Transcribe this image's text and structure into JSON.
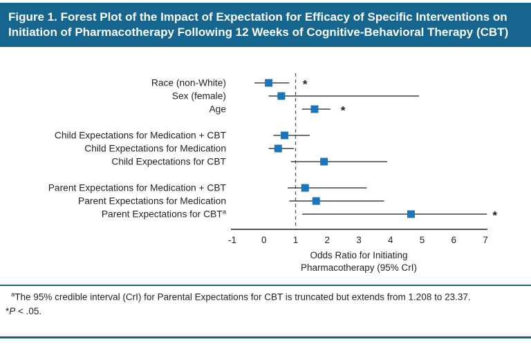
{
  "figure": {
    "title": "Figure 1. Forest Plot of the Impact of Expectation for Efficacy of Specific Interventions on Initiation of Pharmacotherapy Following 12 Weeks of Cognitive-Behavioral Therapy (CBT)"
  },
  "colors": {
    "header_bg": "#15658f",
    "marker_blue": "#1b75bb",
    "ci_line": "#1a1a1a",
    "reference_dash": "#58595b",
    "text": "#231f20",
    "accent_rule": "#15658f"
  },
  "chart_data": {
    "type": "forest",
    "title": "Figure 1. Forest Plot of the Impact of Expectation for Efficacy of Specific Interventions on Initiation of Pharmacotherapy Following 12 Weeks of Cognitive-Behavioral Therapy (CBT)",
    "xlabel_line1": "Odds Ratio for Initiating",
    "xlabel_line2": "Pharmacotherapy (95% CrI)",
    "xlim": [
      -1,
      7
    ],
    "x_ticks": [
      -1,
      0,
      1,
      2,
      3,
      4,
      5,
      6,
      7
    ],
    "reference_line": 1,
    "grid": false,
    "rows": [
      {
        "label": "Race (non-White)",
        "estimate": 0.15,
        "ci_low": -0.3,
        "ci_high": 0.8,
        "asterisk_at": 1.3
      },
      {
        "label": "Sex (female)",
        "estimate": 0.55,
        "ci_low": 0.15,
        "ci_high": 4.9
      },
      {
        "label": "Age",
        "estimate": 1.6,
        "ci_low": 1.2,
        "ci_high": 2.1,
        "asterisk_at": 2.5
      },
      {
        "label": "Child Expectations for Medication + CBT",
        "estimate": 0.65,
        "ci_low": 0.3,
        "ci_high": 1.45,
        "gap_before": true
      },
      {
        "label": "Child Expectations for Medication",
        "estimate": 0.45,
        "ci_low": 0.15,
        "ci_high": 0.95
      },
      {
        "label": "Child Expectations for CBT",
        "estimate": 1.9,
        "ci_low": 0.85,
        "ci_high": 3.9
      },
      {
        "label": "Parent Expectations for Medication + CBT",
        "estimate": 1.3,
        "ci_low": 0.75,
        "ci_high": 3.25,
        "gap_before": true
      },
      {
        "label": "Parent Expectations for Medication",
        "estimate": 1.65,
        "ci_low": 0.8,
        "ci_high": 3.8
      },
      {
        "label": "Parent Expectations for CBT",
        "label_sup": "a",
        "estimate": 4.65,
        "ci_low": 1.208,
        "ci_high": 7.05,
        "truncated": true,
        "asterisk_at": 7.3
      }
    ]
  },
  "footnotes": {
    "note_a_sup": "a",
    "note_a_text": "The 95% credible interval (CrI) for Parental Expectations for CBT is truncated but extends from 1.208 to 23.37.",
    "sig_star": "*",
    "sig_p": "P",
    "sig_rest": " < .05."
  }
}
